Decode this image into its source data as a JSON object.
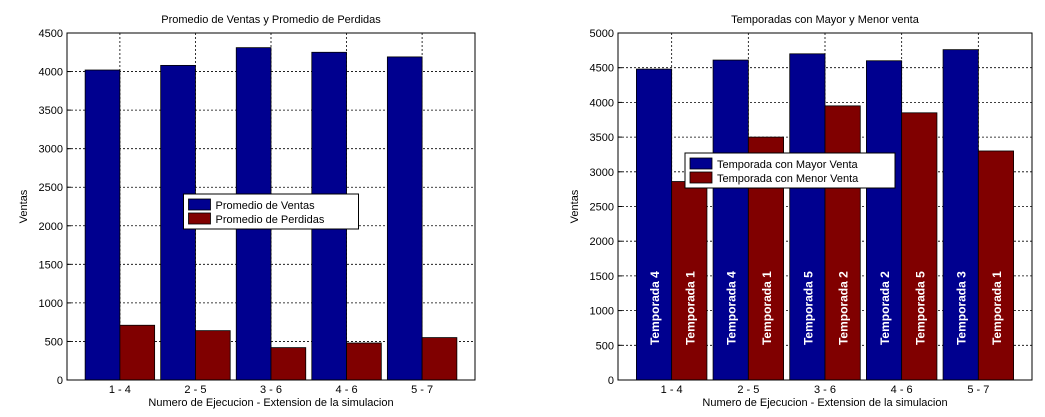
{
  "chart_data": [
    {
      "type": "bar",
      "title": "Promedio de Ventas y Promedio de Perdidas",
      "xlabel": "Numero de Ejecucion - Extension de la simulacion",
      "ylabel": "Ventas",
      "categories": [
        "1 - 4",
        "2 - 5",
        "3 - 6",
        "4 - 6",
        "5 - 7"
      ],
      "series": [
        {
          "name": "Promedio de Ventas",
          "color": "#00008f",
          "values": [
            4020,
            4080,
            4310,
            4250,
            4190
          ]
        },
        {
          "name": "Promedio de Perdidas",
          "color": "#800000",
          "values": [
            710,
            640,
            420,
            480,
            550
          ]
        }
      ],
      "ylim": [
        0,
        4500
      ],
      "yticks": [
        0,
        500,
        1000,
        1500,
        2000,
        2500,
        3000,
        3500,
        4000,
        4500
      ],
      "grid": true,
      "legend": "center"
    },
    {
      "type": "bar",
      "title": "Temporadas con Mayor y Menor venta",
      "xlabel": "Numero de Ejecucion - Extension de la simulacion",
      "ylabel": "Ventas",
      "categories": [
        "1 - 4",
        "2 - 5",
        "3 - 6",
        "4 - 6",
        "5 - 7"
      ],
      "series": [
        {
          "name": "Temporada con Mayor Venta",
          "color": "#00008f",
          "values": [
            4480,
            4610,
            4700,
            4600,
            4760
          ],
          "labels": [
            "Temporada 4",
            "Temporada 4",
            "Temporada 5",
            "Temporada 2",
            "Temporada 3"
          ]
        },
        {
          "name": "Temporada con Menor Venta",
          "color": "#800000",
          "values": [
            2860,
            3500,
            3950,
            3850,
            3300
          ],
          "labels": [
            "Temporada 1",
            "Temporada 1",
            "Temporada 2",
            "Temporada 5",
            "Temporada 1"
          ]
        }
      ],
      "ylim": [
        0,
        5000
      ],
      "yticks": [
        0,
        500,
        1000,
        1500,
        2000,
        2500,
        3000,
        3500,
        4000,
        4500,
        5000
      ],
      "grid": true,
      "legend": "upper center"
    }
  ]
}
